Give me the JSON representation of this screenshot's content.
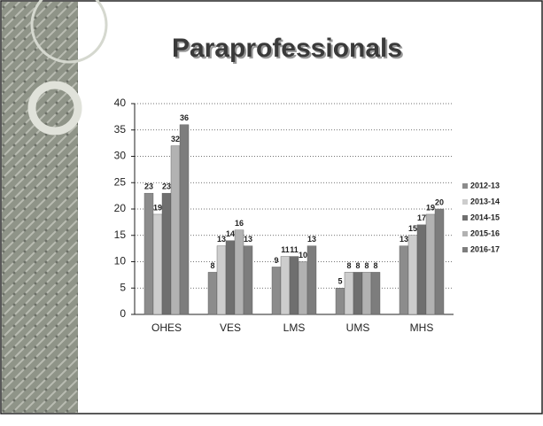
{
  "chart_data": {
    "type": "bar",
    "title": "Paraprofessionals",
    "categories": [
      "OHES",
      "VES",
      "LMS",
      "UMS",
      "MHS"
    ],
    "series": [
      {
        "name": "2012-13",
        "color": "#8c8c8c",
        "values": [
          23,
          8,
          9,
          5,
          13
        ]
      },
      {
        "name": "2013-14",
        "color": "#cdcdcd",
        "values": [
          19,
          13,
          11,
          8,
          15
        ]
      },
      {
        "name": "2014-15",
        "color": "#6f6f6f",
        "values": [
          23,
          14,
          11,
          8,
          17
        ]
      },
      {
        "name": "2015-16",
        "color": "#b2b2b2",
        "values": [
          32,
          16,
          10,
          8,
          19
        ]
      },
      {
        "name": "2016-17",
        "color": "#7d7d7d",
        "values": [
          36,
          13,
          13,
          8,
          20
        ]
      }
    ],
    "ylim": [
      0,
      40
    ],
    "yticks": [
      0,
      5,
      10,
      15,
      20,
      25,
      30,
      35,
      40
    ],
    "grid": true,
    "legend": "right"
  }
}
